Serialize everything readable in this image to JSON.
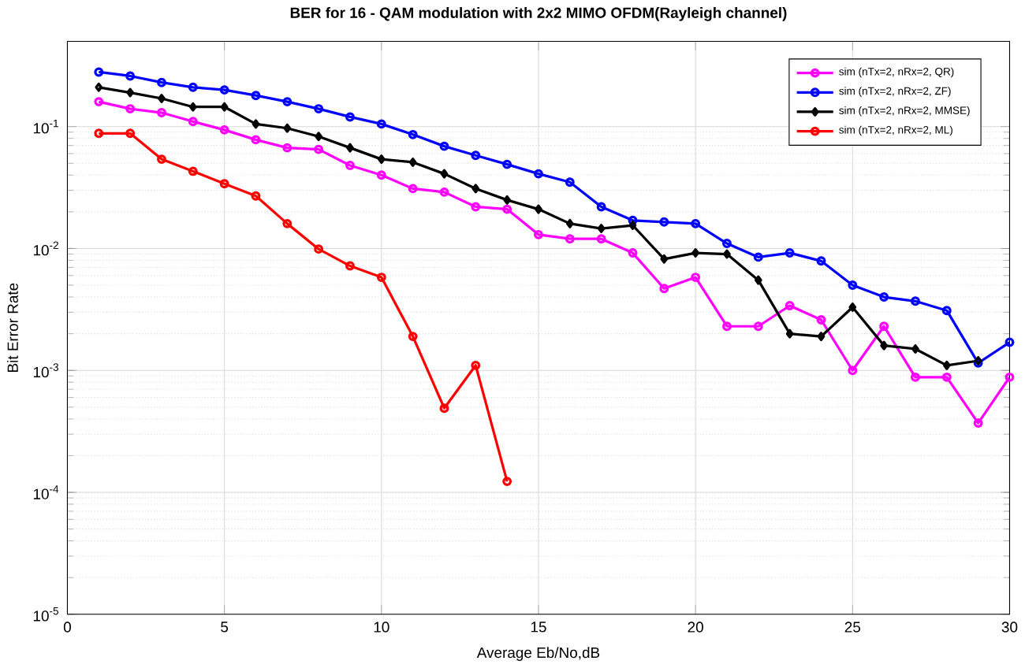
{
  "chart_data": {
    "type": "line",
    "title": "BER for 16 - QAM modulation with 2x2 MIMO OFDM(Rayleigh channel)",
    "xlabel": "Average Eb/No,dB",
    "ylabel": "Bit Error Rate",
    "x": [
      1,
      2,
      3,
      4,
      5,
      6,
      7,
      8,
      9,
      10,
      11,
      12,
      13,
      14,
      15,
      16,
      17,
      18,
      19,
      20,
      21,
      22,
      23,
      24,
      25,
      26,
      27,
      28,
      29,
      30
    ],
    "xlim": [
      0,
      30
    ],
    "xticks": [
      0,
      5,
      10,
      15,
      20,
      25,
      30
    ],
    "log": "y",
    "ylim": [
      1e-05,
      0.5
    ],
    "yticks": [
      {
        "value": 1e-05,
        "label": "10$^{-5}$"
      },
      {
        "value": 0.0001,
        "label": "10$^{-4}$"
      },
      {
        "value": 0.001,
        "label": "10$^{-3}$"
      },
      {
        "value": 0.01,
        "label": "10$^{-2}$"
      },
      {
        "value": 0.1,
        "label": "10$^{-1}$"
      }
    ],
    "grid": true,
    "legend": "top right",
    "line_style": "solid",
    "series": [
      {
        "name": "sim (nTx=2, nRx=2, QR)",
        "color": "#ff00ff",
        "marker": "circle",
        "values": [
          0.16,
          0.14,
          0.13,
          0.11,
          0.094,
          0.078,
          0.067,
          0.065,
          0.048,
          0.04,
          0.031,
          0.029,
          0.022,
          0.021,
          0.013,
          0.012,
          0.012,
          0.0092,
          0.0047,
          0.0058,
          0.0023,
          0.0023,
          0.0034,
          0.0026,
          0.001,
          0.0023,
          0.00088,
          0.00088,
          0.00037,
          0.00088
        ]
      },
      {
        "name": "sim (nTx=2, nRx=2, ZF)",
        "color": "#0000ff",
        "marker": "circle",
        "values": [
          0.28,
          0.26,
          0.23,
          0.21,
          0.2,
          0.18,
          0.16,
          0.14,
          0.12,
          0.105,
          0.086,
          0.069,
          0.058,
          0.049,
          0.041,
          0.035,
          0.022,
          0.017,
          0.0165,
          0.016,
          0.011,
          0.0085,
          0.0092,
          0.0079,
          0.005,
          0.004,
          0.0037,
          0.0031,
          0.00115,
          0.0017
        ]
      },
      {
        "name": "sim (nTx=2, nRx=2, MMSE)",
        "color": "#000000",
        "marker": "diamond",
        "values": [
          0.21,
          0.19,
          0.17,
          0.145,
          0.145,
          0.105,
          0.097,
          0.083,
          0.067,
          0.054,
          0.051,
          0.041,
          0.031,
          0.025,
          0.021,
          0.016,
          0.0146,
          0.0155,
          0.0082,
          0.0092,
          0.009,
          0.0055,
          0.002,
          0.0019,
          0.0033,
          0.0016,
          0.0015,
          0.0011,
          0.0012,
          null
        ]
      },
      {
        "name": "sim (nTx=2, nRx=2, ML)",
        "color": "#ff0000",
        "marker": "circle",
        "values": [
          0.088,
          0.088,
          0.054,
          0.043,
          0.034,
          0.027,
          0.016,
          0.0099,
          0.0072,
          0.0058,
          0.0019,
          0.00049,
          0.0011,
          0.000123,
          null,
          null,
          null,
          null,
          null,
          null,
          null,
          null,
          null,
          null,
          null,
          null,
          null,
          null,
          null,
          null
        ]
      }
    ]
  }
}
